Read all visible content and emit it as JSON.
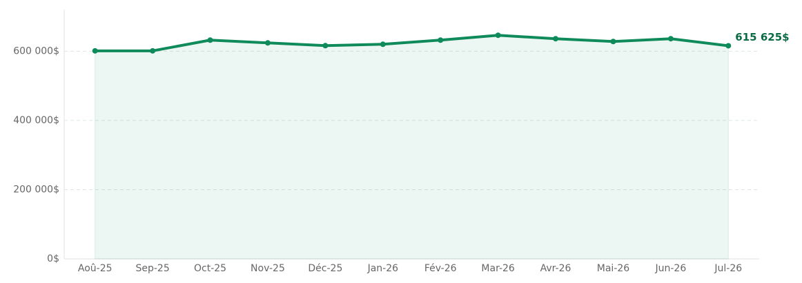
{
  "chart_data": {
    "type": "line",
    "categories": [
      "Aoû-25",
      "Sep-25",
      "Oct-25",
      "Nov-25",
      "Déc-25",
      "Jan-26",
      "Fév-26",
      "Mar-26",
      "Avr-26",
      "Mai-26",
      "Jun-26",
      "Jul-26"
    ],
    "series": [
      {
        "color": "#0f8a5a",
        "values": [
          601000,
          601000,
          632000,
          624000,
          616000,
          620000,
          632000,
          646000,
          636000,
          628000,
          636000,
          615625
        ],
        "value_labels": [
          null,
          null,
          null,
          null,
          null,
          null,
          null,
          null,
          null,
          null,
          null,
          "615 625$"
        ]
      }
    ],
    "area": true,
    "ylim": [
      0,
      720000
    ],
    "yticks": [
      {
        "value": 0,
        "label": "0$"
      },
      {
        "value": 200000,
        "label": "200 000$"
      },
      {
        "value": 400000,
        "label": "400 000$"
      },
      {
        "value": 600000,
        "label": "600 000$"
      }
    ],
    "grid": true
  }
}
